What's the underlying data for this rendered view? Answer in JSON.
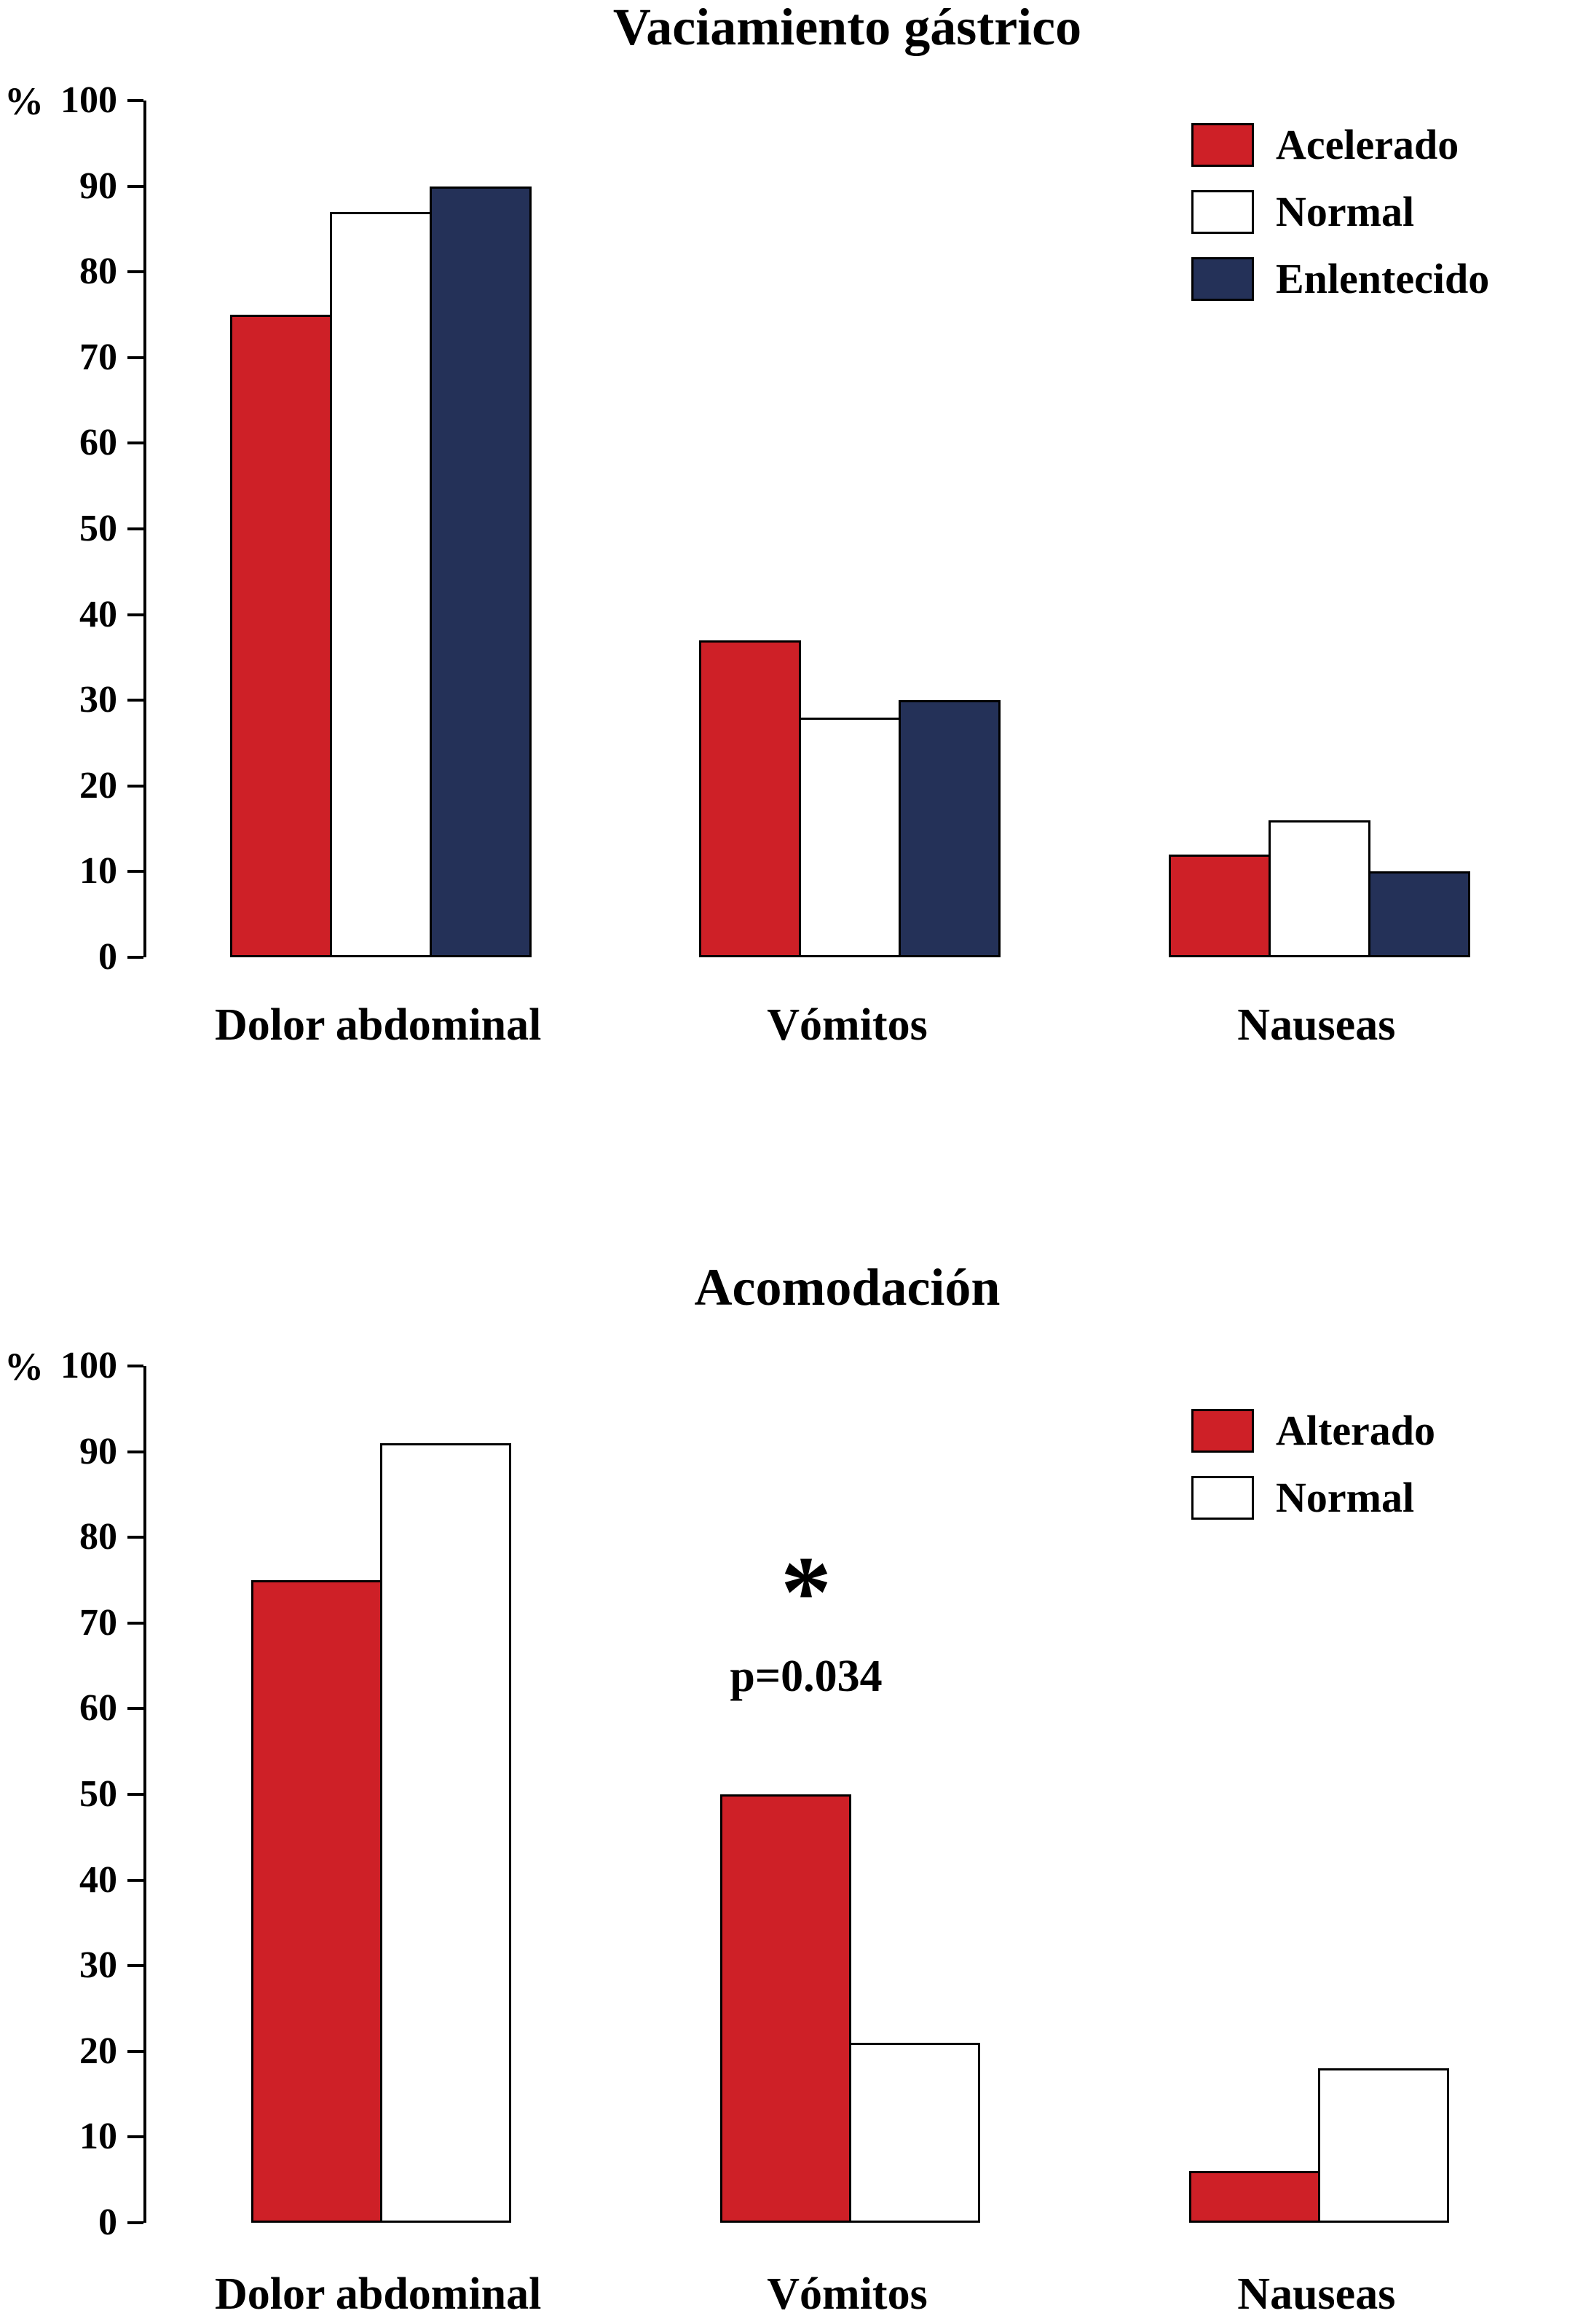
{
  "page": {
    "background": "#ffffff"
  },
  "colors": {
    "bar_red": "#ce2027",
    "bar_navy": "#243158",
    "bar_white": "#ffffff",
    "outline": "#000000"
  },
  "chart_data": [
    {
      "type": "bar",
      "title": "Vaciamiento gástrico",
      "ylabel": "%",
      "xlabel": "",
      "ylim": [
        0,
        100
      ],
      "ytick_step": 10,
      "grid": false,
      "legend_position": "top-right",
      "categories": [
        "Dolor abdominal",
        "Vómitos",
        "Nauseas"
      ],
      "series": [
        {
          "name": "Acelerado",
          "color": "#ce2027",
          "values": [
            75,
            37,
            12
          ]
        },
        {
          "name": "Normal",
          "color": "#ffffff",
          "values": [
            87,
            28,
            16
          ]
        },
        {
          "name": "Enlentecido",
          "color": "#243158",
          "values": [
            90,
            30,
            10
          ]
        }
      ]
    },
    {
      "type": "bar",
      "title": "Acomodación",
      "ylabel": "%",
      "xlabel": "",
      "ylim": [
        0,
        100
      ],
      "ytick_step": 10,
      "grid": false,
      "legend_position": "top-right",
      "categories": [
        "Dolor abdominal",
        "Vómitos",
        "Nauseas"
      ],
      "series": [
        {
          "name": "Alterado",
          "color": "#ce2027",
          "values": [
            75,
            50,
            6
          ]
        },
        {
          "name": "Normal",
          "color": "#ffffff",
          "values": [
            91,
            21,
            18
          ]
        }
      ],
      "annotation": {
        "star": "*",
        "p_value": "p=0.034",
        "category": "Vómitos"
      }
    }
  ]
}
